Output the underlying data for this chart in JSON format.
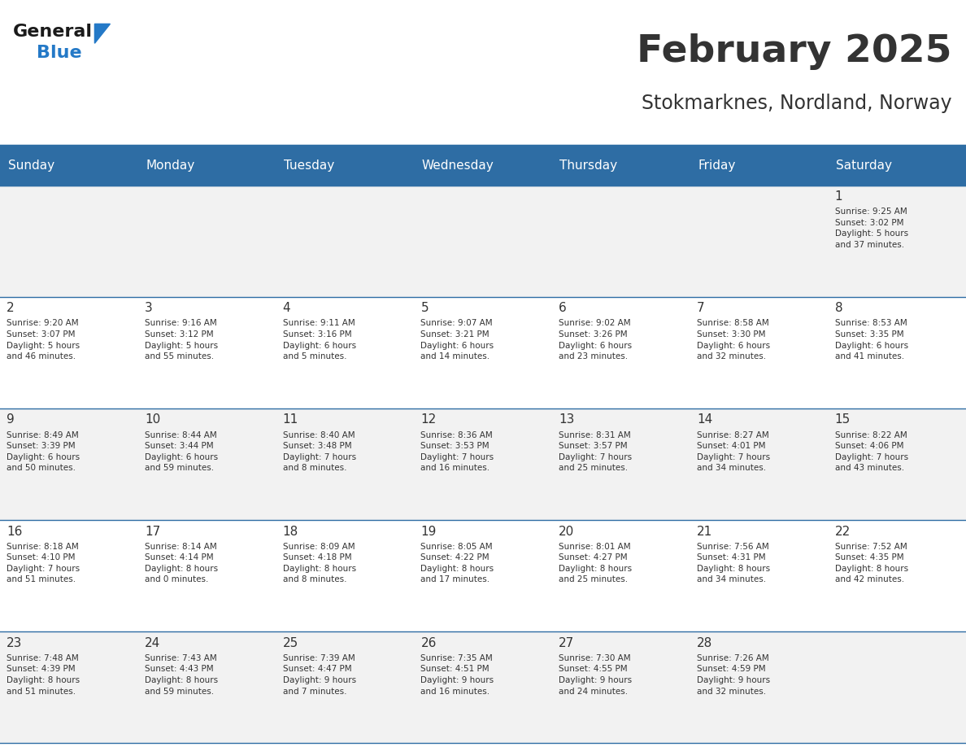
{
  "title": "February 2025",
  "subtitle": "Stokmarknes, Nordland, Norway",
  "header_bg": "#2E6DA4",
  "header_text": "#FFFFFF",
  "cell_bg_light": "#F2F2F2",
  "cell_bg_white": "#FFFFFF",
  "separator_color": "#2E6DA4",
  "text_color": "#333333",
  "day_headers": [
    "Sunday",
    "Monday",
    "Tuesday",
    "Wednesday",
    "Thursday",
    "Friday",
    "Saturday"
  ],
  "weeks": [
    [
      {
        "day": null,
        "info": ""
      },
      {
        "day": null,
        "info": ""
      },
      {
        "day": null,
        "info": ""
      },
      {
        "day": null,
        "info": ""
      },
      {
        "day": null,
        "info": ""
      },
      {
        "day": null,
        "info": ""
      },
      {
        "day": 1,
        "info": "Sunrise: 9:25 AM\nSunset: 3:02 PM\nDaylight: 5 hours\nand 37 minutes."
      }
    ],
    [
      {
        "day": 2,
        "info": "Sunrise: 9:20 AM\nSunset: 3:07 PM\nDaylight: 5 hours\nand 46 minutes."
      },
      {
        "day": 3,
        "info": "Sunrise: 9:16 AM\nSunset: 3:12 PM\nDaylight: 5 hours\nand 55 minutes."
      },
      {
        "day": 4,
        "info": "Sunrise: 9:11 AM\nSunset: 3:16 PM\nDaylight: 6 hours\nand 5 minutes."
      },
      {
        "day": 5,
        "info": "Sunrise: 9:07 AM\nSunset: 3:21 PM\nDaylight: 6 hours\nand 14 minutes."
      },
      {
        "day": 6,
        "info": "Sunrise: 9:02 AM\nSunset: 3:26 PM\nDaylight: 6 hours\nand 23 minutes."
      },
      {
        "day": 7,
        "info": "Sunrise: 8:58 AM\nSunset: 3:30 PM\nDaylight: 6 hours\nand 32 minutes."
      },
      {
        "day": 8,
        "info": "Sunrise: 8:53 AM\nSunset: 3:35 PM\nDaylight: 6 hours\nand 41 minutes."
      }
    ],
    [
      {
        "day": 9,
        "info": "Sunrise: 8:49 AM\nSunset: 3:39 PM\nDaylight: 6 hours\nand 50 minutes."
      },
      {
        "day": 10,
        "info": "Sunrise: 8:44 AM\nSunset: 3:44 PM\nDaylight: 6 hours\nand 59 minutes."
      },
      {
        "day": 11,
        "info": "Sunrise: 8:40 AM\nSunset: 3:48 PM\nDaylight: 7 hours\nand 8 minutes."
      },
      {
        "day": 12,
        "info": "Sunrise: 8:36 AM\nSunset: 3:53 PM\nDaylight: 7 hours\nand 16 minutes."
      },
      {
        "day": 13,
        "info": "Sunrise: 8:31 AM\nSunset: 3:57 PM\nDaylight: 7 hours\nand 25 minutes."
      },
      {
        "day": 14,
        "info": "Sunrise: 8:27 AM\nSunset: 4:01 PM\nDaylight: 7 hours\nand 34 minutes."
      },
      {
        "day": 15,
        "info": "Sunrise: 8:22 AM\nSunset: 4:06 PM\nDaylight: 7 hours\nand 43 minutes."
      }
    ],
    [
      {
        "day": 16,
        "info": "Sunrise: 8:18 AM\nSunset: 4:10 PM\nDaylight: 7 hours\nand 51 minutes."
      },
      {
        "day": 17,
        "info": "Sunrise: 8:14 AM\nSunset: 4:14 PM\nDaylight: 8 hours\nand 0 minutes."
      },
      {
        "day": 18,
        "info": "Sunrise: 8:09 AM\nSunset: 4:18 PM\nDaylight: 8 hours\nand 8 minutes."
      },
      {
        "day": 19,
        "info": "Sunrise: 8:05 AM\nSunset: 4:22 PM\nDaylight: 8 hours\nand 17 minutes."
      },
      {
        "day": 20,
        "info": "Sunrise: 8:01 AM\nSunset: 4:27 PM\nDaylight: 8 hours\nand 25 minutes."
      },
      {
        "day": 21,
        "info": "Sunrise: 7:56 AM\nSunset: 4:31 PM\nDaylight: 8 hours\nand 34 minutes."
      },
      {
        "day": 22,
        "info": "Sunrise: 7:52 AM\nSunset: 4:35 PM\nDaylight: 8 hours\nand 42 minutes."
      }
    ],
    [
      {
        "day": 23,
        "info": "Sunrise: 7:48 AM\nSunset: 4:39 PM\nDaylight: 8 hours\nand 51 minutes."
      },
      {
        "day": 24,
        "info": "Sunrise: 7:43 AM\nSunset: 4:43 PM\nDaylight: 8 hours\nand 59 minutes."
      },
      {
        "day": 25,
        "info": "Sunrise: 7:39 AM\nSunset: 4:47 PM\nDaylight: 9 hours\nand 7 minutes."
      },
      {
        "day": 26,
        "info": "Sunrise: 7:35 AM\nSunset: 4:51 PM\nDaylight: 9 hours\nand 16 minutes."
      },
      {
        "day": 27,
        "info": "Sunrise: 7:30 AM\nSunset: 4:55 PM\nDaylight: 9 hours\nand 24 minutes."
      },
      {
        "day": 28,
        "info": "Sunrise: 7:26 AM\nSunset: 4:59 PM\nDaylight: 9 hours\nand 32 minutes."
      },
      {
        "day": null,
        "info": ""
      }
    ]
  ],
  "logo_general_color": "#1a1a1a",
  "logo_blue_color": "#2479C7",
  "logo_triangle_color": "#2479C7"
}
